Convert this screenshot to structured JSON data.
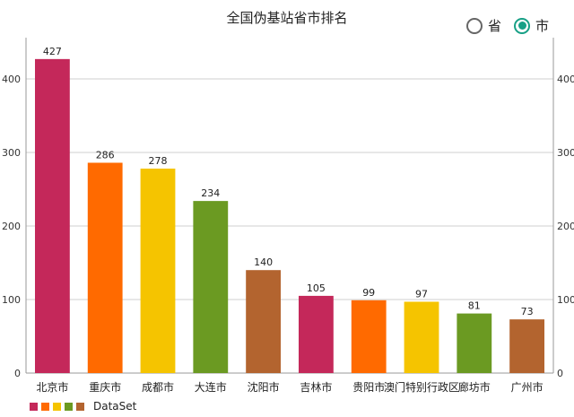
{
  "header": {
    "title": "全国伪基站省市排名"
  },
  "toggle": {
    "options": [
      {
        "label": "省",
        "selected": false
      },
      {
        "label": "市",
        "selected": true
      }
    ],
    "accent": "#18a086"
  },
  "legend": {
    "label": "DataSet"
  },
  "chart_data": {
    "type": "bar",
    "title": "全国伪基站省市排名",
    "categories": [
      "北京市",
      "重庆市",
      "成都市",
      "大连市",
      "沈阳市",
      "吉林市",
      "贵阳市",
      "澳门特别行政区",
      "廊坊市",
      "广州市"
    ],
    "series": [
      {
        "name": "DataSet",
        "values": [
          427,
          286,
          278,
          234,
          140,
          105,
          99,
          97,
          81,
          73
        ]
      }
    ],
    "colors": [
      "#c4285a",
      "#ff6a00",
      "#f5c400",
      "#6b9a22",
      "#b3642f"
    ],
    "ylim": [
      0,
      450
    ],
    "yticks": [
      0,
      100,
      200,
      300,
      400
    ],
    "grid": true,
    "secondary_axis": true,
    "legend_position": "bottom-left"
  }
}
